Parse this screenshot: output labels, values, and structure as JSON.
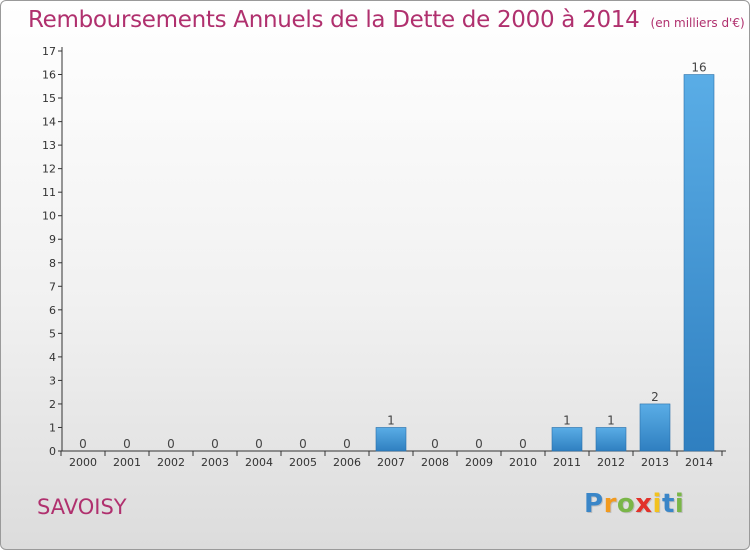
{
  "header": {
    "title": "Remboursements Annuels de la Dette de 2000 à 2014",
    "subtitle": "(en milliers d'€)"
  },
  "footer": {
    "commune": "SAVOISY",
    "logo_letters": [
      {
        "ch": "P",
        "color": "#3a86c8"
      },
      {
        "ch": "r",
        "color": "#f29a1e"
      },
      {
        "ch": "o",
        "color": "#7ab648"
      },
      {
        "ch": "x",
        "color": "#e2322a"
      },
      {
        "ch": "i",
        "color": "#f2c21e"
      },
      {
        "ch": "t",
        "color": "#3a86c8"
      },
      {
        "ch": "i",
        "color": "#7ab648"
      }
    ]
  },
  "colors": {
    "bar_light": "#5aade6",
    "bar_dark": "#2f7fc0",
    "accent": "#b0306e",
    "axis": "#333333"
  },
  "chart_data": {
    "type": "bar",
    "title": "Remboursements Annuels de la Dette de 2000 à 2014",
    "subtitle": "(en milliers d'€)",
    "xlabel": "",
    "ylabel": "",
    "categories": [
      "2000",
      "2001",
      "2002",
      "2003",
      "2004",
      "2005",
      "2006",
      "2007",
      "2008",
      "2009",
      "2010",
      "2011",
      "2012",
      "2013",
      "2014"
    ],
    "values": [
      0,
      0,
      0,
      0,
      0,
      0,
      0,
      1,
      0,
      0,
      0,
      1,
      1,
      2,
      16
    ],
    "data_labels": [
      "0",
      "0",
      "0",
      "0",
      "0",
      "0",
      "0",
      "1",
      "0",
      "0",
      "0",
      "1",
      "1",
      "2",
      "16"
    ],
    "ylim": [
      0,
      17
    ],
    "yticks": [
      "0",
      "1",
      "2",
      "3",
      "4",
      "5",
      "6",
      "7",
      "8",
      "9",
      "10",
      "11",
      "12",
      "13",
      "14",
      "15",
      "16",
      "17"
    ],
    "grid": false,
    "legend": "none"
  }
}
